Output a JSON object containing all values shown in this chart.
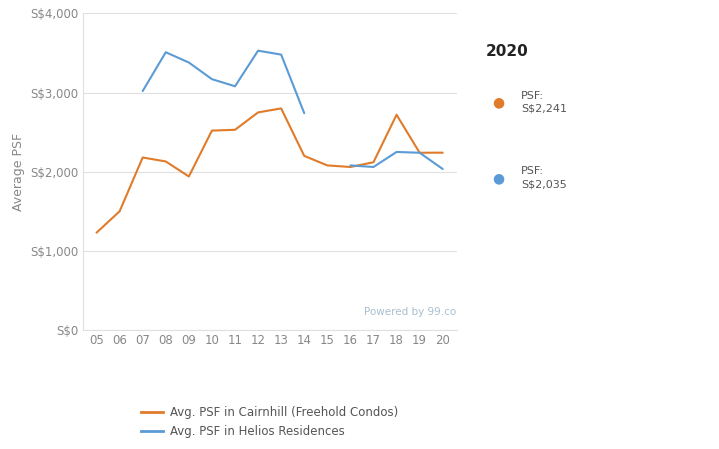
{
  "x_labels": [
    "05",
    "06",
    "07",
    "08",
    "09",
    "10",
    "11",
    "12",
    "13",
    "14",
    "15",
    "16",
    "17",
    "18",
    "19",
    "20"
  ],
  "x_values": [
    2005,
    2006,
    2007,
    2008,
    2009,
    2010,
    2011,
    2012,
    2013,
    2014,
    2015,
    2016,
    2017,
    2018,
    2019,
    2020
  ],
  "cairnhill_psf": [
    1230,
    1500,
    2180,
    2130,
    1940,
    2520,
    2530,
    2750,
    2800,
    2200,
    2080,
    2060,
    2120,
    2720,
    2240,
    2241
  ],
  "helios_psf": [
    null,
    null,
    3020,
    3510,
    3380,
    3170,
    3080,
    3530,
    3480,
    2740,
    null,
    2080,
    2060,
    2250,
    2240,
    2035
  ],
  "cairnhill_color": "#E07B2A",
  "helios_color": "#5B9BD5",
  "background_color": "#ffffff",
  "ylabel": "Average PSF",
  "ylim": [
    0,
    4000
  ],
  "yticks": [
    0,
    1000,
    2000,
    3000,
    4000
  ],
  "ytick_labels": [
    "S$0",
    "S$1,000",
    "S$2,000",
    "S$3,000",
    "S$4,000"
  ],
  "legend_cairnhill": "Avg. PSF in Cairnhill (Freehold Condos)",
  "legend_helios": "Avg. PSF in Helios Residences",
  "annotation_year": "2020",
  "annotation_cairnhill_label": "PSF:\nS$2,241",
  "annotation_helios_label": "PSF:\nS$2,035",
  "watermark": "Powered by 99.co",
  "grid_color": "#e0e0e0",
  "axis_label_fontsize": 9,
  "tick_fontsize": 8.5,
  "tick_color": "#888888",
  "ylabel_color": "#888888",
  "watermark_color": "#a8bfd0",
  "annotation_color": "#555555",
  "legend_color": "#555555"
}
